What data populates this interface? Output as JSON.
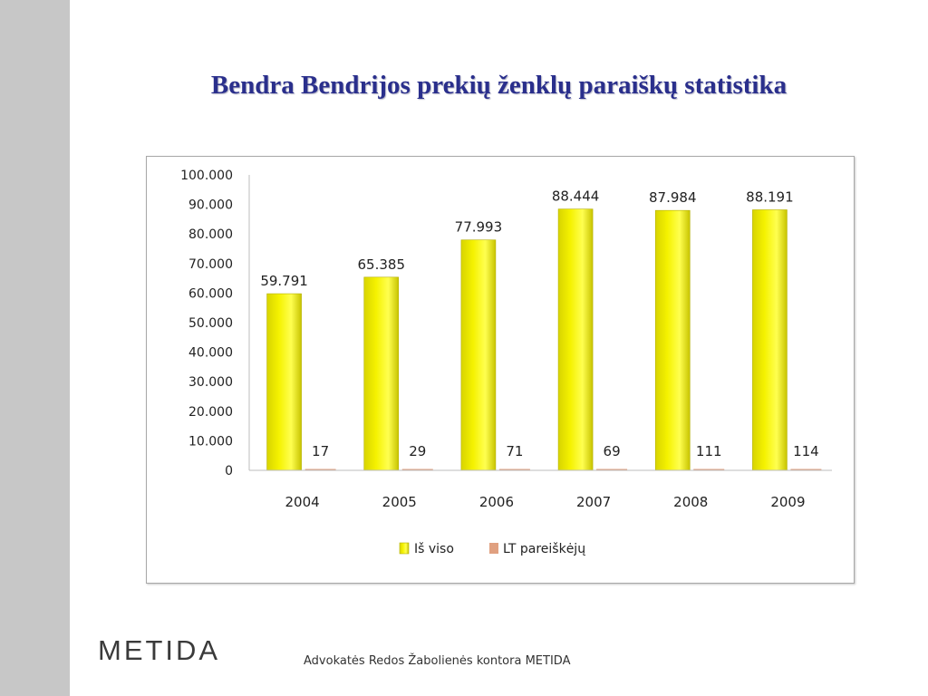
{
  "slide": {
    "title": "Bendra Bendrijos prekių ženklų paraiškų statistika",
    "footer": {
      "logo_text": "METIDA",
      "firm_name": "Advokatės Redos Žabolienės kontora METIDA"
    }
  },
  "colors": {
    "title": "#2a2f8c",
    "series_total": "#f5f200",
    "series_total_edge": "#b5b000",
    "series_lt": "#e0a080",
    "side_band": "#c7c7c7"
  },
  "chart_data": {
    "type": "bar",
    "title": "",
    "xlabel": "",
    "ylabel": "",
    "categories": [
      "2004",
      "2005",
      "2006",
      "2007",
      "2008",
      "2009"
    ],
    "ylim": [
      0,
      100000
    ],
    "y_ticks": [
      0,
      10000,
      20000,
      30000,
      40000,
      50000,
      60000,
      70000,
      80000,
      90000,
      100000
    ],
    "y_tick_labels": [
      "0",
      "10.000",
      "20.000",
      "30.000",
      "40.000",
      "50.000",
      "60.000",
      "70.000",
      "80.000",
      "90.000",
      "100.000"
    ],
    "grid": false,
    "legend_position": "bottom",
    "series": [
      {
        "name": "Iš viso",
        "values": [
          59791,
          65385,
          77993,
          88444,
          87984,
          88191
        ],
        "value_labels": [
          "59.791",
          "65.385",
          "77.993",
          "88.444",
          "87.984",
          "88.191"
        ]
      },
      {
        "name": "LT pareiškėjų",
        "values": [
          17,
          29,
          71,
          69,
          111,
          114
        ],
        "value_labels": [
          "17",
          "29",
          "71",
          "69",
          "111",
          "114"
        ]
      }
    ]
  }
}
